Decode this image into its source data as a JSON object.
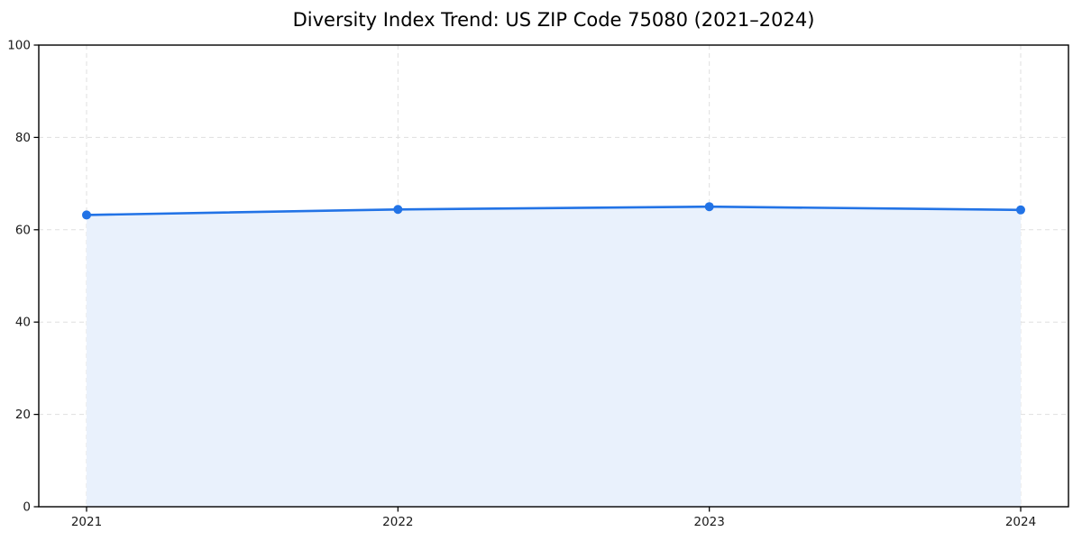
{
  "chart_data": {
    "type": "area",
    "title": "Diversity Index Trend: US ZIP Code 75080 (2021–2024)",
    "categories": [
      "2021",
      "2022",
      "2023",
      "2024"
    ],
    "series": [
      {
        "name": "Diversity Index",
        "values": [
          63.2,
          64.4,
          65.0,
          64.3
        ]
      }
    ],
    "xlabel": "",
    "ylabel": "",
    "ylim": [
      0,
      100
    ],
    "yticks": [
      0,
      20,
      40,
      60,
      80,
      100
    ],
    "grid": true,
    "grid_style": "dashed",
    "legend_position": "none",
    "colors": {
      "line": "#2273e6",
      "marker": "#2273e6",
      "fill": "#e9f1fc",
      "grid": "#dfdfdf",
      "spine": "#000000",
      "tick_text": "#1a1a1a",
      "background": "#ffffff"
    }
  }
}
